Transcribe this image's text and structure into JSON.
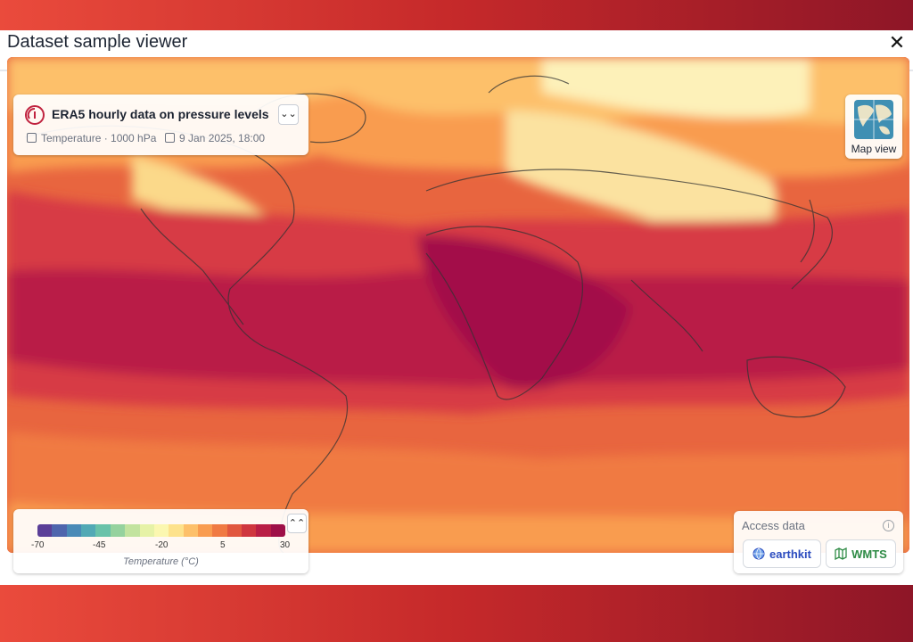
{
  "modal": {
    "title": "Dataset sample viewer",
    "close_icon": "close-icon"
  },
  "dataset": {
    "title": "ERA5 hourly data on pressure levels",
    "variable": "Temperature · 1000 hPa",
    "datetime": "9 Jan 2025, 18:00",
    "collapse_icon": "chevron-double-down-icon"
  },
  "map_view": {
    "label": "Map view",
    "icon": "map-thumbnail-icon"
  },
  "legend": {
    "ticks": [
      "-70",
      "-45",
      "-20",
      "5",
      "30"
    ],
    "label": "Temperature (°C)",
    "expand_icon": "chevron-double-up-icon",
    "colors": [
      "#5b3f98",
      "#4f65ad",
      "#4a8ab7",
      "#52a9b5",
      "#69c2a9",
      "#95d29e",
      "#c2e39f",
      "#e6f2a7",
      "#fbf7b0",
      "#fde28c",
      "#fdc06a",
      "#f99c50",
      "#f07a43",
      "#e1573f",
      "#cf363f",
      "#b91e46",
      "#9e0f48"
    ]
  },
  "access": {
    "title": "Access data",
    "earthkit_label": "earthkit",
    "wmts_label": "WMTS",
    "info_icon": "info-icon"
  }
}
